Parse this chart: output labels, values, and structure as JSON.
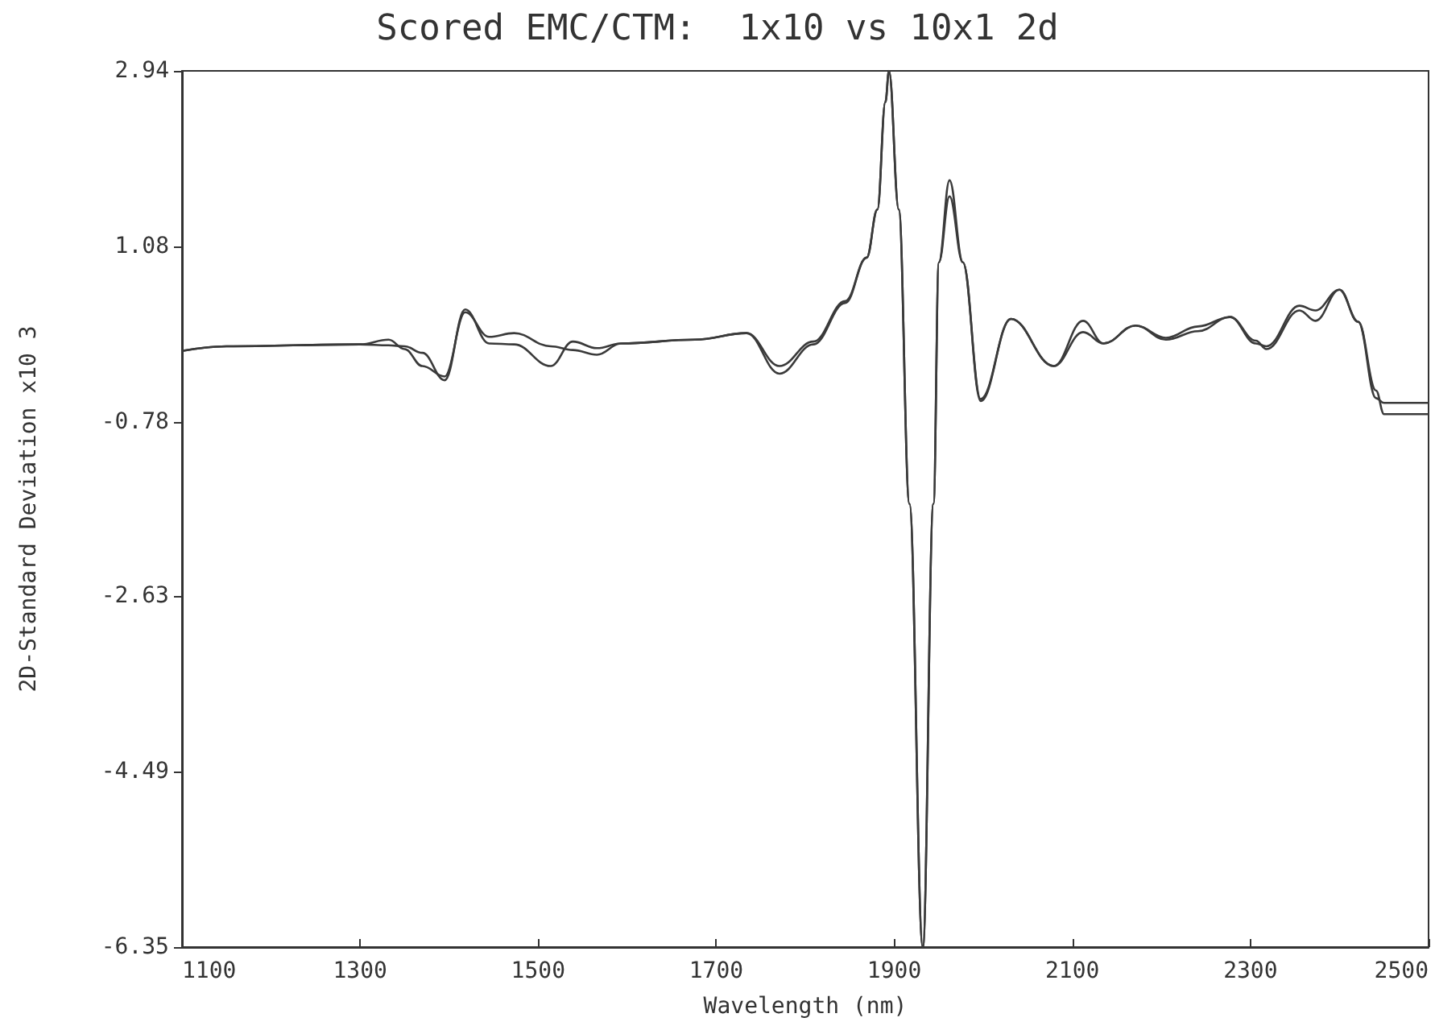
{
  "chart_data": {
    "type": "line",
    "title": "Scored EMC/CTM:  1x10 vs 10x1 2d",
    "xlabel": "Wavelength (nm)",
    "ylabel": "2D-Standard Deviation x10 3",
    "x": [
      1100,
      1150,
      1300,
      1332,
      1350,
      1370,
      1395,
      1418,
      1445,
      1473,
      1514,
      1539,
      1566,
      1593,
      1676,
      1734,
      1771,
      1809,
      1845,
      1869,
      1881,
      1890,
      1894,
      1905,
      1917,
      1932,
      1944,
      1950,
      1962,
      1977,
      1997,
      2031,
      2079,
      2112,
      2135,
      2171,
      2205,
      2241,
      2277,
      2306,
      2318,
      2355,
      2373,
      2400,
      2421,
      2441,
      2450,
      2500
    ],
    "series": [
      {
        "color": "#3a3a3a",
        "values": [
          -0.03,
          0.02,
          0.04,
          0.09,
          -0.01,
          -0.19,
          -0.3,
          0.38,
          0.12,
          0.16,
          0.02,
          -0.02,
          -0.07,
          0.05,
          0.09,
          0.16,
          -0.19,
          0.07,
          0.5,
          0.96,
          1.47,
          2.61,
          2.94,
          1.47,
          -1.65,
          -6.35,
          -1.65,
          0.91,
          1.78,
          0.91,
          -0.56,
          0.31,
          -0.19,
          0.29,
          0.05,
          0.24,
          0.09,
          0.18,
          0.33,
          0.05,
          0.02,
          0.45,
          0.4,
          0.62,
          0.28,
          -0.53,
          -0.58,
          -0.58
        ]
      },
      {
        "color": "#3a3a3a",
        "values": [
          -0.03,
          0.02,
          0.04,
          0.03,
          0.02,
          -0.05,
          -0.34,
          0.41,
          0.05,
          0.04,
          -0.19,
          0.07,
          0.0,
          0.05,
          0.09,
          0.16,
          -0.27,
          0.04,
          0.48,
          0.96,
          1.47,
          2.61,
          2.94,
          1.47,
          -1.65,
          -6.35,
          -1.65,
          0.91,
          1.61,
          0.91,
          -0.54,
          0.31,
          -0.19,
          0.17,
          0.05,
          0.24,
          0.11,
          0.23,
          0.33,
          0.08,
          -0.01,
          0.4,
          0.29,
          0.62,
          0.28,
          -0.45,
          -0.7,
          -0.7
        ]
      }
    ],
    "xlim": [
      1100,
      2500
    ],
    "xticks": [
      1100,
      1300,
      1500,
      1700,
      1900,
      2100,
      2300,
      2500
    ],
    "ylim": [
      -6.35,
      2.94
    ],
    "yticks": [
      -6.35,
      -4.49,
      -2.63,
      -0.78,
      1.08,
      2.94
    ],
    "grid": false,
    "marker": "none",
    "line_style": "solid"
  }
}
